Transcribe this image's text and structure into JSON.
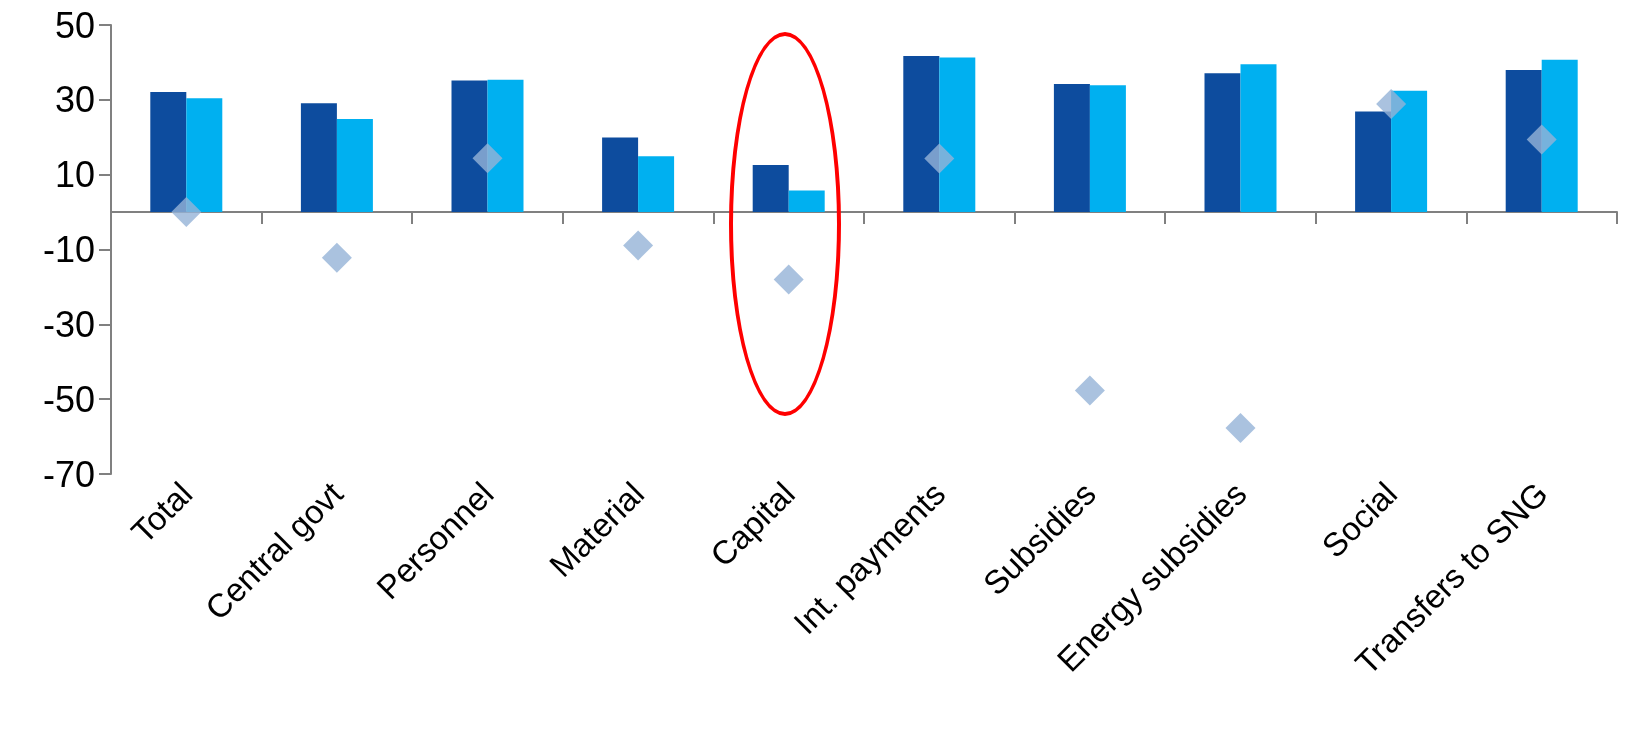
{
  "chart_data": {
    "type": "bar",
    "categories": [
      "Total",
      "Central govt",
      "Personnel",
      "Material",
      "Capital",
      "Int. payments",
      "Subsidies",
      "Energy subsidies",
      "Social",
      "Transfers to SNG"
    ],
    "series": [
      {
        "color": "#0d4c9e",
        "values": [
          32.1,
          29.1,
          35.2,
          19.9,
          12.6,
          41.7,
          34.2,
          37.1,
          26.9,
          38.0
        ]
      },
      {
        "color": "#00b0f0",
        "values": [
          30.4,
          24.9,
          35.4,
          14.9,
          5.8,
          41.3,
          33.9,
          39.5,
          32.4,
          40.7
        ]
      },
      {
        "type": "scatter",
        "color": "#95b3d7",
        "marker": "diamond",
        "values": [
          0,
          -12.2,
          14.4,
          -8.9,
          -18,
          14.3,
          -47.7,
          -57.7,
          28.9,
          19.4
        ]
      }
    ],
    "ylim": [
      -70,
      50
    ],
    "yticks": [
      -70,
      -50,
      -30,
      -10,
      10,
      30,
      50
    ],
    "grid": false
  }
}
